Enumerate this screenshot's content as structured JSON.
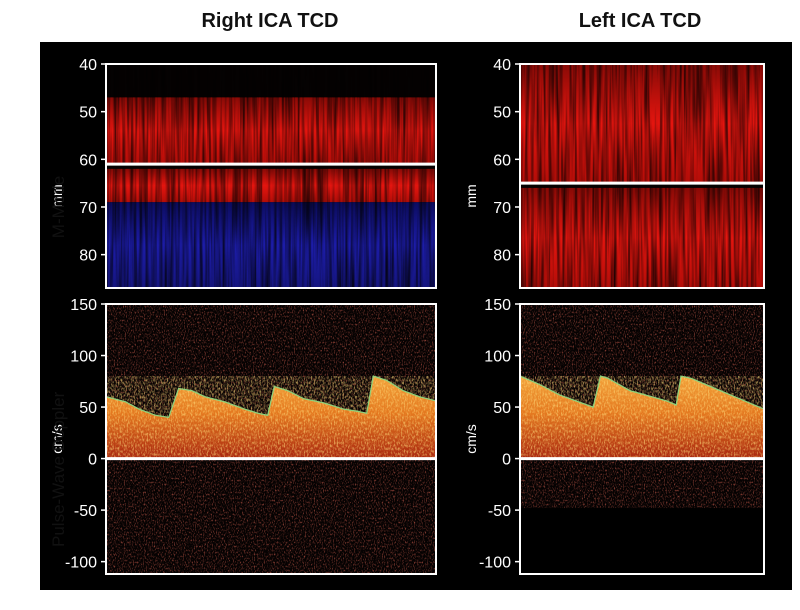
{
  "column_titles": {
    "right": "Right ICA TCD",
    "left": "Left ICA TCD"
  },
  "row_titles": {
    "mmode": "M-Mode",
    "doppler": "Pulse-Wave Doppler"
  },
  "colors": {
    "red_flow": "#e0140f",
    "blue_flow": "#1a1aa8",
    "doppler_hot": "#f6b03a",
    "envelope": "#8fd07a"
  },
  "chart_data": [
    {
      "id": "right-mmode",
      "type": "heatmap",
      "title": "Right ICA TCD",
      "ylabel": "mm",
      "ylim": [
        40,
        87
      ],
      "yticks": [
        40,
        50,
        60,
        70,
        80
      ],
      "baseline": 61,
      "bands": [
        {
          "from": 47,
          "to": 61,
          "color": "red"
        },
        {
          "from": 62,
          "to": 69,
          "color": "red"
        },
        {
          "from": 69,
          "to": 87,
          "color": "blue"
        }
      ]
    },
    {
      "id": "left-mmode",
      "type": "heatmap",
      "title": "Left ICA TCD",
      "ylabel": "mm",
      "ylim": [
        40,
        87
      ],
      "yticks": [
        40,
        50,
        60,
        70,
        80
      ],
      "baseline": 65,
      "bands": [
        {
          "from": 40,
          "to": 65,
          "color": "red"
        },
        {
          "from": 66,
          "to": 87,
          "color": "red"
        }
      ]
    },
    {
      "id": "right-doppler",
      "type": "area",
      "ylabel": "cm/s",
      "ylim": [
        -112,
        150
      ],
      "yticks": [
        150,
        100,
        50,
        0,
        -50,
        -100
      ],
      "baseline": 0,
      "envelope": [
        [
          0,
          60
        ],
        [
          0.06,
          55
        ],
        [
          0.1,
          48
        ],
        [
          0.15,
          42
        ],
        [
          0.19,
          40
        ],
        [
          0.22,
          68
        ],
        [
          0.26,
          66
        ],
        [
          0.3,
          60
        ],
        [
          0.36,
          55
        ],
        [
          0.42,
          48
        ],
        [
          0.46,
          44
        ],
        [
          0.49,
          42
        ],
        [
          0.51,
          70
        ],
        [
          0.55,
          66
        ],
        [
          0.6,
          58
        ],
        [
          0.66,
          54
        ],
        [
          0.72,
          48
        ],
        [
          0.76,
          46
        ],
        [
          0.79,
          44
        ],
        [
          0.81,
          80
        ],
        [
          0.85,
          76
        ],
        [
          0.9,
          66
        ],
        [
          0.95,
          60
        ],
        [
          1,
          56
        ]
      ]
    },
    {
      "id": "left-doppler",
      "type": "area",
      "ylabel": "cm/s",
      "ylim": [
        -112,
        150
      ],
      "yticks": [
        150,
        100,
        50,
        0,
        -50,
        -100
      ],
      "baseline": 0,
      "envelope": [
        [
          0,
          80
        ],
        [
          0.08,
          72
        ],
        [
          0.16,
          62
        ],
        [
          0.24,
          55
        ],
        [
          0.3,
          50
        ],
        [
          0.33,
          80
        ],
        [
          0.36,
          78
        ],
        [
          0.45,
          66
        ],
        [
          0.54,
          60
        ],
        [
          0.6,
          56
        ],
        [
          0.64,
          52
        ],
        [
          0.66,
          80
        ],
        [
          0.7,
          78
        ],
        [
          0.8,
          68
        ],
        [
          0.9,
          58
        ],
        [
          1,
          48
        ]
      ]
    }
  ]
}
